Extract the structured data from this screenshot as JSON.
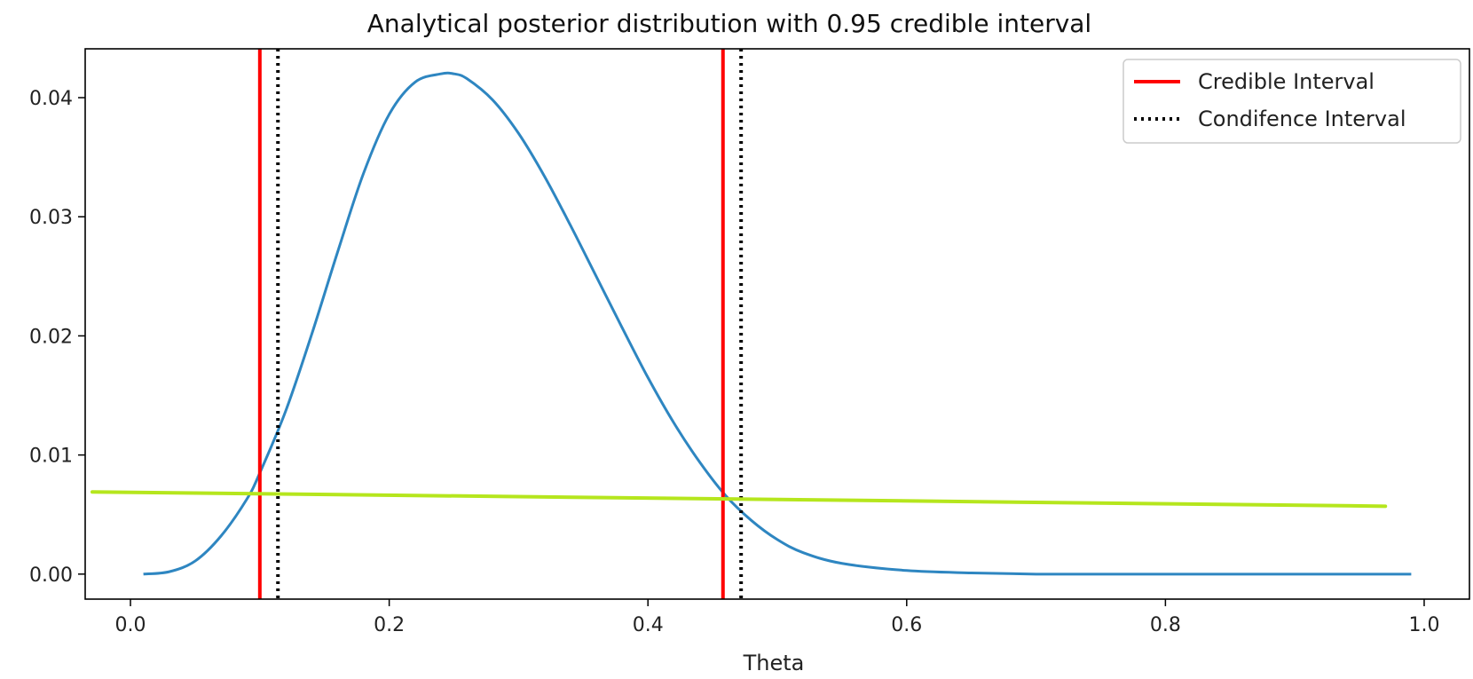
{
  "chart_data": {
    "type": "line",
    "title": "Analytical posterior distribution with 0.95 credible interval",
    "xlabel": "Theta",
    "ylabel": "",
    "xlim": [
      -0.035,
      1.035
    ],
    "ylim": [
      -0.0021,
      0.0441
    ],
    "grid": false,
    "x_ticks": [
      0.0,
      0.2,
      0.4,
      0.6,
      0.8,
      1.0
    ],
    "x_tick_labels": [
      "0.0",
      "0.2",
      "0.4",
      "0.6",
      "0.8",
      "1.0"
    ],
    "y_ticks": [
      0.0,
      0.01,
      0.02,
      0.03,
      0.04
    ],
    "y_tick_labels": [
      "0.00",
      "0.01",
      "0.02",
      "0.03",
      "0.04"
    ],
    "legend_position": "top-right",
    "legend": [
      "Credible Interval",
      "Condifence Interval"
    ],
    "posterior": {
      "color": "#2e86c1",
      "x": [
        0.01,
        0.03,
        0.05,
        0.07,
        0.09,
        0.1,
        0.12,
        0.14,
        0.16,
        0.18,
        0.2,
        0.22,
        0.24,
        0.25,
        0.26,
        0.28,
        0.3,
        0.32,
        0.34,
        0.36,
        0.38,
        0.4,
        0.42,
        0.44,
        0.46,
        0.48,
        0.5,
        0.52,
        0.55,
        0.6,
        0.65,
        0.7,
        0.75,
        0.8,
        0.85,
        0.9,
        0.95,
        0.99
      ],
      "y": [
        0.0,
        0.0002,
        0.0011,
        0.0032,
        0.0063,
        0.0085,
        0.0137,
        0.0201,
        0.027,
        0.0336,
        0.0386,
        0.0413,
        0.042,
        0.042,
        0.0416,
        0.0398,
        0.037,
        0.0334,
        0.0293,
        0.025,
        0.0207,
        0.0165,
        0.0127,
        0.0094,
        0.0066,
        0.0045,
        0.0029,
        0.0018,
        0.0009,
        0.0003,
        0.0001,
        0.0,
        0.0,
        0.0,
        0.0,
        0.0,
        0.0,
        0.0
      ]
    },
    "credible_interval": {
      "name": "Credible Interval",
      "color": "#ff0000",
      "x": [
        0.1,
        0.458
      ]
    },
    "confidence_interval": {
      "name": "Condifence Interval",
      "color": "#000000",
      "x": [
        0.114,
        0.472
      ]
    },
    "annotation_line": {
      "color": "#b5e61d",
      "x": [
        -0.035,
        0.97
      ],
      "y": [
        0.0069,
        0.0057
      ]
    }
  }
}
